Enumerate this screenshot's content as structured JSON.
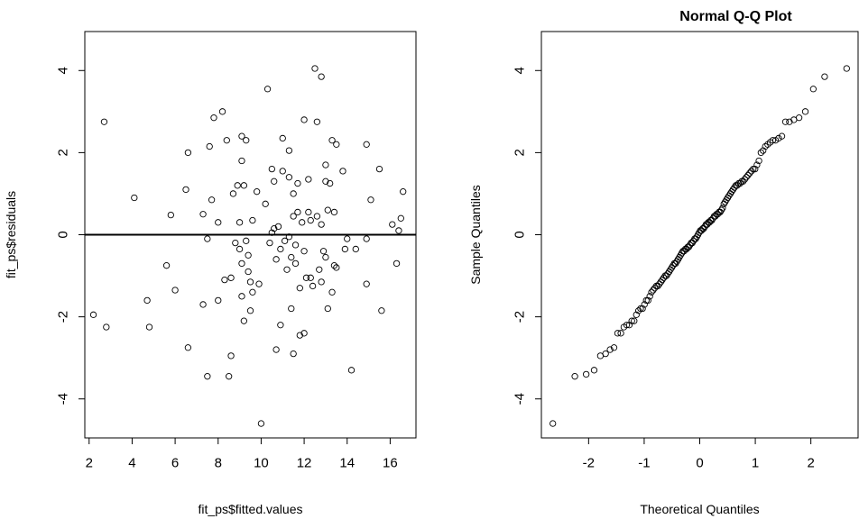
{
  "chart_data": [
    {
      "type": "scatter",
      "title": "",
      "xlabel": "fit_ps$fitted.values",
      "ylabel": "fit_ps$residuals",
      "xlim": [
        1.8,
        17.2
      ],
      "ylim": [
        -4.95,
        4.95
      ],
      "xticks": [
        2,
        4,
        6,
        8,
        10,
        12,
        14,
        16
      ],
      "yticks": [
        -4,
        -2,
        0,
        2,
        4
      ],
      "xtick_labels": [
        "2",
        "4",
        "6",
        "8",
        "10",
        "12",
        "14",
        "16"
      ],
      "ytick_labels": [
        "-4",
        "-2",
        "0",
        "2",
        "4"
      ],
      "grid": false,
      "marker": "open-circle",
      "reference_line": {
        "type": "horizontal",
        "y": 0
      },
      "points": [
        [
          2.2,
          -1.95
        ],
        [
          2.7,
          2.75
        ],
        [
          2.8,
          -2.25
        ],
        [
          4.1,
          0.9
        ],
        [
          4.7,
          -1.6
        ],
        [
          4.8,
          -2.25
        ],
        [
          5.6,
          -0.75
        ],
        [
          5.8,
          0.48
        ],
        [
          6.0,
          -1.35
        ],
        [
          6.5,
          1.1
        ],
        [
          6.6,
          2.0
        ],
        [
          6.6,
          -2.75
        ],
        [
          7.3,
          -1.7
        ],
        [
          7.3,
          0.5
        ],
        [
          7.5,
          -0.1
        ],
        [
          7.5,
          -3.45
        ],
        [
          7.6,
          2.15
        ],
        [
          7.7,
          0.85
        ],
        [
          7.8,
          2.85
        ],
        [
          8.0,
          0.3
        ],
        [
          8.0,
          -1.6
        ],
        [
          8.2,
          3.0
        ],
        [
          8.3,
          -1.1
        ],
        [
          8.4,
          2.3
        ],
        [
          8.5,
          -3.45
        ],
        [
          8.6,
          -1.05
        ],
        [
          8.6,
          -2.95
        ],
        [
          8.7,
          1.0
        ],
        [
          8.8,
          -0.2
        ],
        [
          8.9,
          1.2
        ],
        [
          9.0,
          -0.35
        ],
        [
          9.0,
          0.3
        ],
        [
          9.1,
          1.8
        ],
        [
          9.1,
          2.4
        ],
        [
          9.1,
          -0.7
        ],
        [
          9.1,
          -1.5
        ],
        [
          9.2,
          1.2
        ],
        [
          9.2,
          -2.1
        ],
        [
          9.3,
          2.3
        ],
        [
          9.3,
          -0.15
        ],
        [
          9.4,
          -0.5
        ],
        [
          9.4,
          -0.9
        ],
        [
          9.5,
          -1.15
        ],
        [
          9.5,
          -1.85
        ],
        [
          9.6,
          0.35
        ],
        [
          9.6,
          -1.4
        ],
        [
          9.8,
          1.05
        ],
        [
          9.9,
          -1.2
        ],
        [
          10.0,
          -4.6
        ],
        [
          10.2,
          0.75
        ],
        [
          10.3,
          3.55
        ],
        [
          10.4,
          -0.2
        ],
        [
          10.5,
          1.6
        ],
        [
          10.5,
          0.05
        ],
        [
          10.6,
          1.3
        ],
        [
          10.6,
          0.15
        ],
        [
          10.7,
          -2.8
        ],
        [
          10.7,
          -0.6
        ],
        [
          10.8,
          0.2
        ],
        [
          10.9,
          -2.2
        ],
        [
          10.9,
          -0.35
        ],
        [
          11.0,
          2.35
        ],
        [
          11.0,
          1.55
        ],
        [
          11.1,
          -0.15
        ],
        [
          11.2,
          -0.85
        ],
        [
          11.3,
          2.05
        ],
        [
          11.3,
          1.4
        ],
        [
          11.3,
          -0.05
        ],
        [
          11.4,
          -0.55
        ],
        [
          11.4,
          -1.8
        ],
        [
          11.5,
          1.0
        ],
        [
          11.5,
          0.45
        ],
        [
          11.5,
          -2.9
        ],
        [
          11.6,
          -0.25
        ],
        [
          11.6,
          -0.7
        ],
        [
          11.7,
          1.25
        ],
        [
          11.7,
          0.55
        ],
        [
          11.8,
          -1.3
        ],
        [
          11.8,
          -2.45
        ],
        [
          11.9,
          0.3
        ],
        [
          12.0,
          2.8
        ],
        [
          12.0,
          -0.4
        ],
        [
          12.0,
          -2.4
        ],
        [
          12.1,
          -1.05
        ],
        [
          12.2,
          0.55
        ],
        [
          12.2,
          1.35
        ],
        [
          12.3,
          0.35
        ],
        [
          12.3,
          -1.05
        ],
        [
          12.4,
          -1.25
        ],
        [
          12.5,
          4.05
        ],
        [
          12.6,
          2.75
        ],
        [
          12.6,
          0.45
        ],
        [
          12.7,
          -0.85
        ],
        [
          12.8,
          3.85
        ],
        [
          12.8,
          0.25
        ],
        [
          12.8,
          -1.15
        ],
        [
          12.9,
          -0.4
        ],
        [
          13.0,
          1.7
        ],
        [
          13.0,
          1.3
        ],
        [
          13.0,
          -0.55
        ],
        [
          13.1,
          0.6
        ],
        [
          13.1,
          -1.8
        ],
        [
          13.2,
          1.25
        ],
        [
          13.3,
          -1.4
        ],
        [
          13.3,
          2.3
        ],
        [
          13.4,
          -0.75
        ],
        [
          13.4,
          0.55
        ],
        [
          13.5,
          2.2
        ],
        [
          13.5,
          -0.8
        ],
        [
          13.8,
          1.55
        ],
        [
          13.9,
          -0.35
        ],
        [
          14.0,
          -0.1
        ],
        [
          14.2,
          -3.3
        ],
        [
          14.4,
          -0.35
        ],
        [
          14.9,
          2.2
        ],
        [
          14.9,
          -0.1
        ],
        [
          14.9,
          -1.2
        ],
        [
          15.1,
          0.85
        ],
        [
          15.5,
          1.6
        ],
        [
          15.6,
          -1.85
        ],
        [
          16.1,
          0.25
        ],
        [
          16.3,
          -0.7
        ],
        [
          16.4,
          0.1
        ],
        [
          16.5,
          0.4
        ],
        [
          16.6,
          1.05
        ]
      ]
    },
    {
      "type": "scatter",
      "title": "Normal Q-Q Plot",
      "xlabel": "Theoretical Quantiles",
      "ylabel": "Sample Quantiles",
      "xlim": [
        -2.85,
        2.85
      ],
      "ylim": [
        -4.95,
        4.95
      ],
      "xticks": [
        -2,
        -1,
        0,
        1,
        2
      ],
      "yticks": [
        -4,
        -2,
        0,
        2,
        4
      ],
      "xtick_labels": [
        "-2",
        "-1",
        "0",
        "1",
        "2"
      ],
      "ytick_labels": [
        "-4",
        "-2",
        "0",
        "2",
        "4"
      ],
      "grid": false,
      "marker": "open-circle",
      "n_points": 122,
      "sample_quantiles_sorted": [
        -4.6,
        -3.45,
        -3.4,
        -3.3,
        -2.95,
        -2.9,
        -2.8,
        -2.75,
        -2.4,
        -2.4,
        -2.25,
        -2.2,
        -2.2,
        -2.1,
        -2.1,
        -1.95,
        -1.85,
        -1.8,
        -1.8,
        -1.7,
        -1.6,
        -1.6,
        -1.5,
        -1.4,
        -1.35,
        -1.3,
        -1.25,
        -1.2,
        -1.15,
        -1.1,
        -1.05,
        -1.0,
        -0.95,
        -0.9,
        -0.85,
        -0.8,
        -0.75,
        -0.7,
        -0.65,
        -0.6,
        -0.55,
        -0.5,
        -0.45,
        -0.4,
        -0.4,
        -0.35,
        -0.35,
        -0.3,
        -0.25,
        -0.2,
        -0.2,
        -0.15,
        -0.1,
        -0.1,
        -0.05,
        0.0,
        0.05,
        0.1,
        0.1,
        0.15,
        0.2,
        0.25,
        0.25,
        0.3,
        0.3,
        0.35,
        0.35,
        0.4,
        0.45,
        0.45,
        0.5,
        0.5,
        0.55,
        0.55,
        0.6,
        0.75,
        0.8,
        0.85,
        0.9,
        0.95,
        1.0,
        1.05,
        1.1,
        1.15,
        1.2,
        1.2,
        1.25,
        1.3,
        1.3,
        1.35,
        1.4,
        1.45,
        1.5,
        1.55,
        1.6,
        1.6,
        1.7,
        1.8,
        2.0,
        2.05,
        2.15,
        2.2,
        2.25,
        2.3,
        2.3,
        2.35,
        2.4,
        2.75,
        2.75,
        2.8,
        2.85,
        3.0,
        3.55,
        3.85,
        4.05,
        1.25,
        -1.0,
        0.65,
        -0.3,
        0.15,
        -0.7,
        -1.25
      ]
    }
  ]
}
